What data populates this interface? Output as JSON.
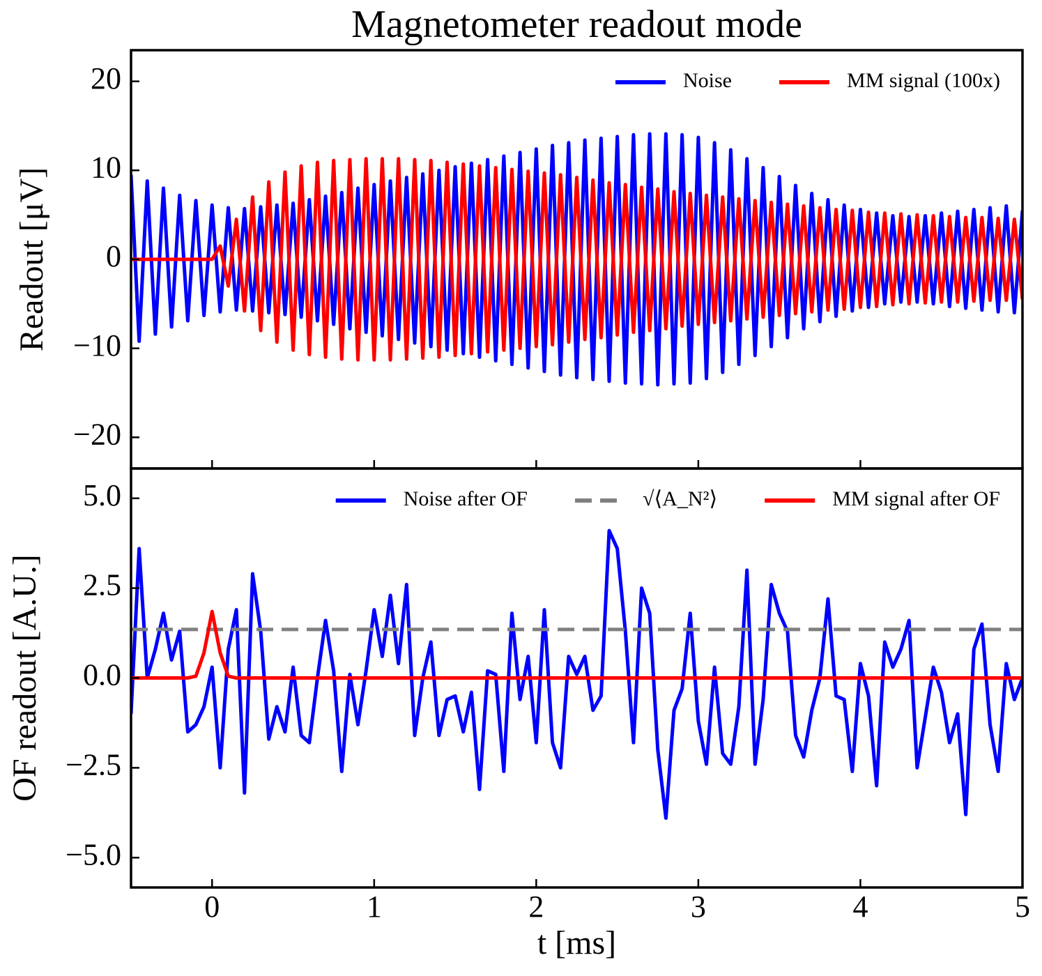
{
  "chart_data": [
    {
      "type": "line",
      "title": "Magnetometer readout mode",
      "ylabel": "Readout [μV]",
      "xlim": [
        -0.5,
        5
      ],
      "xticks": [
        0,
        1,
        2,
        3,
        4,
        5
      ],
      "xtick_labels": false,
      "ylim": [
        -23.5,
        23.5
      ],
      "yticks": [
        {
          "value": -20,
          "label": "−20"
        },
        {
          "value": -10,
          "label": "−10"
        },
        0,
        10,
        20
      ],
      "legend": "upper right",
      "x": [
        -0.5,
        -0.45,
        -0.4,
        -0.35,
        -0.3,
        -0.25,
        -0.2,
        -0.15,
        -0.1,
        -0.05,
        0,
        0.05,
        0.1,
        0.15,
        0.2,
        0.25,
        0.3,
        0.35,
        0.4,
        0.45,
        0.5,
        0.55,
        0.6,
        0.65,
        0.7,
        0.75,
        0.8,
        0.85,
        0.9,
        0.95,
        1,
        1.05,
        1.1,
        1.15,
        1.2,
        1.25,
        1.3,
        1.35,
        1.4,
        1.45,
        1.5,
        1.55,
        1.6,
        1.65,
        1.7,
        1.75,
        1.8,
        1.85,
        1.9,
        1.95,
        2,
        2.05,
        2.1,
        2.15,
        2.2,
        2.25,
        2.3,
        2.35,
        2.4,
        2.45,
        2.5,
        2.55,
        2.6,
        2.65,
        2.7,
        2.75,
        2.8,
        2.85,
        2.9,
        2.95,
        3,
        3.05,
        3.1,
        3.15,
        3.2,
        3.25,
        3.3,
        3.35,
        3.4,
        3.45,
        3.5,
        3.55,
        3.6,
        3.65,
        3.7,
        3.75,
        3.8,
        3.85,
        3.9,
        3.95,
        4,
        4.05,
        4.1,
        4.15,
        4.2,
        4.25,
        4.3,
        4.35,
        4.4,
        4.45,
        4.5,
        4.55,
        4.6,
        4.65,
        4.7,
        4.75,
        4.8,
        4.85,
        4.9,
        4.95,
        5
      ],
      "series": [
        {
          "name": "Noise",
          "color": "#0000ff",
          "values": [
            9.5,
            -9.2,
            8.8,
            -8.4,
            8.0,
            -7.6,
            7.2,
            -6.9,
            6.6,
            -6.3,
            6.1,
            -5.9,
            5.8,
            -5.7,
            5.7,
            -5.8,
            5.9,
            -6.0,
            6.1,
            -6.2,
            6.3,
            -6.5,
            6.7,
            -6.9,
            7.1,
            -7.3,
            7.5,
            -7.8,
            8.0,
            -8.2,
            8.4,
            -8.6,
            8.8,
            -9.0,
            9.2,
            -9.4,
            9.6,
            -9.8,
            10.0,
            -10.2,
            10.4,
            -10.6,
            10.8,
            -11.0,
            11.2,
            -11.4,
            11.6,
            -11.8,
            12.0,
            -12.2,
            12.4,
            -12.6,
            12.8,
            -13.0,
            13.1,
            -13.3,
            13.4,
            -13.5,
            13.6,
            -13.7,
            13.8,
            -13.9,
            14.0,
            -14.0,
            14.1,
            -14.1,
            14.1,
            -14.0,
            14.0,
            -13.9,
            13.7,
            -13.4,
            13.1,
            -12.7,
            12.3,
            -11.8,
            11.3,
            -10.8,
            10.3,
            -9.8,
            9.3,
            -8.8,
            8.3,
            -7.8,
            7.4,
            -7.0,
            6.7,
            -6.4,
            6.1,
            -5.8,
            5.6,
            -5.4,
            5.2,
            -5.0,
            4.9,
            -4.8,
            4.8,
            -4.8,
            4.9,
            -5.0,
            5.2,
            -5.3,
            5.4,
            -5.5,
            5.6,
            -5.7,
            5.8,
            -5.9,
            6.0,
            -6.0,
            5.5
          ]
        },
        {
          "name": "MM signal (100x)",
          "color": "#ff0000",
          "values": [
            0,
            0,
            0,
            0,
            0,
            0,
            0,
            0,
            0,
            0,
            0,
            1.5,
            -3.0,
            4.5,
            -5.8,
            7.0,
            -8.0,
            8.7,
            -9.3,
            9.8,
            -10.2,
            10.5,
            -10.7,
            10.9,
            -11.0,
            11.1,
            -11.2,
            11.2,
            -11.3,
            11.3,
            -11.3,
            11.3,
            -11.3,
            11.3,
            -11.2,
            11.2,
            -11.1,
            11.1,
            -11.0,
            10.9,
            -10.8,
            10.7,
            -10.6,
            10.5,
            -10.4,
            10.3,
            -10.2,
            10.1,
            -10.0,
            9.9,
            -9.8,
            9.7,
            -9.6,
            9.5,
            -9.3,
            9.2,
            -9.0,
            8.9,
            -8.8,
            8.6,
            -8.5,
            8.4,
            -8.2,
            8.1,
            -8.0,
            7.9,
            -7.8,
            7.6,
            -7.5,
            7.4,
            -7.3,
            7.2,
            -7.1,
            7.0,
            -6.9,
            6.8,
            -6.7,
            6.6,
            -6.5,
            6.4,
            -6.3,
            6.2,
            -6.1,
            6.0,
            -5.9,
            5.8,
            -5.7,
            5.6,
            -5.6,
            5.5,
            -5.4,
            5.3,
            -5.3,
            5.2,
            -5.1,
            5.1,
            -5.0,
            5.0,
            -4.9,
            4.9,
            -4.8,
            4.8,
            -4.8,
            4.7,
            -4.7,
            4.7,
            -4.6,
            4.6,
            -4.6,
            4.5,
            -4.5
          ]
        }
      ]
    },
    {
      "type": "line",
      "xlabel": "t [ms]",
      "ylabel": "OF readout [A.U.]",
      "xlim": [
        -0.5,
        5
      ],
      "xticks": [
        0,
        1,
        2,
        3,
        4,
        5
      ],
      "xtick_labels": true,
      "ylim": [
        -5.83,
        5.83
      ],
      "yticks": [
        {
          "value": -5,
          "label": "−5.0"
        },
        {
          "value": -2.5,
          "label": "−2.5"
        },
        {
          "value": 0,
          "label": "0.0"
        },
        2.5,
        {
          "value": 5,
          "label": "5.0"
        }
      ],
      "legend": "upper right",
      "x": [
        -0.5,
        -0.45,
        -0.4,
        -0.35,
        -0.3,
        -0.25,
        -0.2,
        -0.15,
        -0.1,
        -0.05,
        0,
        0.05,
        0.1,
        0.15,
        0.2,
        0.25,
        0.3,
        0.35,
        0.4,
        0.45,
        0.5,
        0.55,
        0.6,
        0.65,
        0.7,
        0.75,
        0.8,
        0.85,
        0.9,
        0.95,
        1,
        1.05,
        1.1,
        1.15,
        1.2,
        1.25,
        1.3,
        1.35,
        1.4,
        1.45,
        1.5,
        1.55,
        1.6,
        1.65,
        1.7,
        1.75,
        1.8,
        1.85,
        1.9,
        1.95,
        2,
        2.05,
        2.1,
        2.15,
        2.2,
        2.25,
        2.3,
        2.35,
        2.4,
        2.45,
        2.5,
        2.55,
        2.6,
        2.65,
        2.7,
        2.75,
        2.8,
        2.85,
        2.9,
        2.95,
        3,
        3.05,
        3.1,
        3.15,
        3.2,
        3.25,
        3.3,
        3.35,
        3.4,
        3.45,
        3.5,
        3.55,
        3.6,
        3.65,
        3.7,
        3.75,
        3.8,
        3.85,
        3.9,
        3.95,
        4,
        4.05,
        4.1,
        4.15,
        4.2,
        4.25,
        4.3,
        4.35,
        4.4,
        4.45,
        4.5,
        4.55,
        4.6,
        4.65,
        4.7,
        4.75,
        4.8,
        4.85,
        4.9,
        4.95,
        5
      ],
      "series": [
        {
          "name": "Noise after OF",
          "color": "#0000ff",
          "values": [
            -1.0,
            3.6,
            0.0,
            0.8,
            1.8,
            0.5,
            1.3,
            -1.5,
            -1.3,
            -0.8,
            0.3,
            -2.5,
            0.8,
            1.9,
            -3.2,
            2.9,
            1.3,
            -1.7,
            -0.8,
            -1.5,
            0.3,
            -1.6,
            -1.8,
            0.0,
            1.6,
            0.2,
            -2.6,
            0.1,
            -1.3,
            0.2,
            1.9,
            0.6,
            2.3,
            0.4,
            2.6,
            -1.6,
            0.0,
            1.0,
            -1.6,
            -0.6,
            -0.5,
            -1.5,
            -0.4,
            -3.1,
            0.2,
            0.1,
            -2.6,
            1.8,
            -0.6,
            0.6,
            -1.8,
            1.9,
            -1.8,
            -2.5,
            0.6,
            0.1,
            0.6,
            -0.9,
            -0.5,
            4.1,
            3.6,
            1.3,
            -1.8,
            2.5,
            1.8,
            -2.0,
            -3.9,
            -0.9,
            -0.3,
            1.8,
            -1.2,
            -2.4,
            0.3,
            -2.1,
            -2.4,
            -0.8,
            3.0,
            -2.4,
            -0.6,
            2.6,
            1.8,
            1.3,
            -1.6,
            -2.2,
            -0.9,
            0.0,
            2.2,
            -0.5,
            -0.6,
            -2.6,
            0.4,
            -0.5,
            -3.0,
            1.0,
            0.3,
            0.8,
            1.6,
            -2.5,
            -1.1,
            0.3,
            -0.4,
            -1.8,
            -1.0,
            -3.8,
            0.8,
            1.5,
            -1.3,
            -2.6,
            0.4,
            -0.6,
            0.0
          ]
        },
        {
          "name": "√⟨A_N²⟩",
          "color": "#808080",
          "hline": 1.35,
          "dashed": true
        },
        {
          "name": "MM signal after OF",
          "color": "#ff0000",
          "values": [
            0,
            0,
            0,
            0,
            0,
            0,
            0,
            0,
            0.05,
            0.7,
            1.85,
            0.7,
            0.05,
            0,
            0,
            0,
            0,
            0,
            0,
            0,
            0,
            0,
            0,
            0,
            0,
            0,
            0,
            0,
            0,
            0,
            0,
            0,
            0,
            0,
            0,
            0,
            0,
            0,
            0,
            0,
            0,
            0,
            0,
            0,
            0,
            0,
            0,
            0,
            0,
            0,
            0,
            0,
            0,
            0,
            0,
            0,
            0,
            0,
            0,
            0,
            0,
            0,
            0,
            0,
            0,
            0,
            0,
            0,
            0,
            0,
            0,
            0,
            0,
            0,
            0,
            0,
            0,
            0,
            0,
            0,
            0,
            0,
            0,
            0,
            0,
            0,
            0,
            0,
            0,
            0,
            0,
            0,
            0,
            0,
            0,
            0,
            0,
            0,
            0,
            0,
            0,
            0,
            0,
            0,
            0,
            0,
            0,
            0,
            0,
            0,
            0
          ]
        }
      ]
    }
  ]
}
